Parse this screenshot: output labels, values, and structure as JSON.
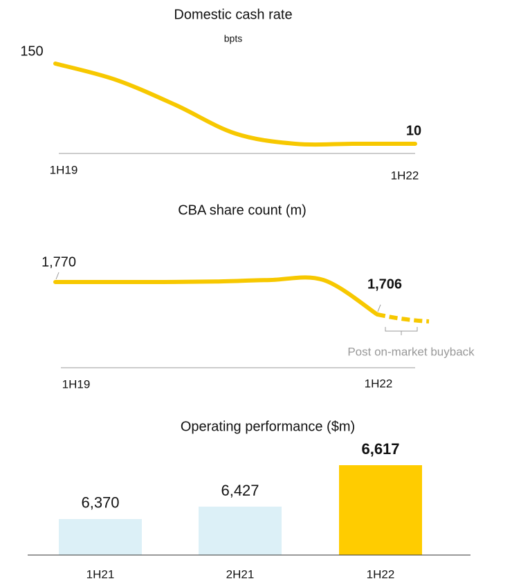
{
  "chart_data": [
    {
      "type": "line",
      "title": "Domestic cash rate",
      "subtitle": "bpts",
      "categories": [
        "1H19",
        null,
        null,
        null,
        null,
        null,
        "1H22"
      ],
      "values": [
        150,
        122,
        78,
        28,
        10,
        10,
        10
      ],
      "color": "#f7c800"
    },
    {
      "type": "line",
      "title": "CBA share count (m)",
      "categories": [
        "1H19",
        null,
        null,
        null,
        null,
        null,
        "1H22"
      ],
      "values": [
        1770,
        1770,
        1770,
        1771,
        1774,
        1774,
        1706
      ],
      "value_labels": [
        "1,770",
        null,
        null,
        null,
        null,
        null,
        "1,706"
      ],
      "color": "#f7c800",
      "post_buyback": {
        "label": "Post on-market buyback",
        "value": 1692
      }
    },
    {
      "type": "bar",
      "title": "Operating performance ($m)",
      "categories": [
        "1H21",
        "2H21",
        "1H22"
      ],
      "values": [
        6370,
        6427,
        6617
      ],
      "value_labels": [
        "6,370",
        "6,427",
        "6,617"
      ],
      "colors": [
        "#dcf0f7",
        "#dcf0f7",
        "#ffcc00"
      ],
      "ylim": [
        6205,
        6617
      ]
    }
  ]
}
